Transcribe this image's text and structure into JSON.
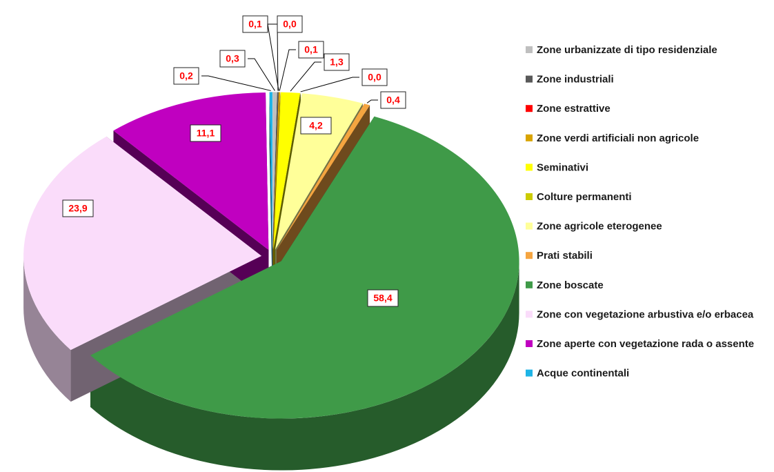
{
  "chart_data": {
    "type": "pie3d",
    "categories": [
      "Zone urbanizzate di tipo residenziale",
      "Zone industriali",
      "Zone estrattive",
      "Zone verdi artificiali non agricole",
      "Seminativi",
      "Colture permanenti",
      "Zone agricole eterogenee",
      "Prati stabili",
      "Zone boscate",
      "Zone con vegetazione arbustiva e/o erbacea",
      "Zone aperte con vegetazione rada o assente",
      "Acque continentali"
    ],
    "values": [
      0.3,
      0.1,
      0.0,
      0.1,
      1.3,
      0.0,
      4.2,
      0.4,
      58.4,
      23.9,
      11.1,
      0.2
    ],
    "value_labels": [
      "0,3",
      "0,1",
      "0,0",
      "0,1",
      "1,3",
      "0,0",
      "4,2",
      "0,4",
      "58,4",
      "23,9",
      "11,1",
      "0,2"
    ],
    "colors": [
      "#bfbfbf",
      "#595959",
      "#ff0000",
      "#d9a400",
      "#ffff00",
      "#cccc00",
      "#ffff99",
      "#f5a540",
      "#3f9a48",
      "#fadcfa",
      "#c000c0",
      "#1eb4e6"
    ],
    "legend": "right"
  }
}
